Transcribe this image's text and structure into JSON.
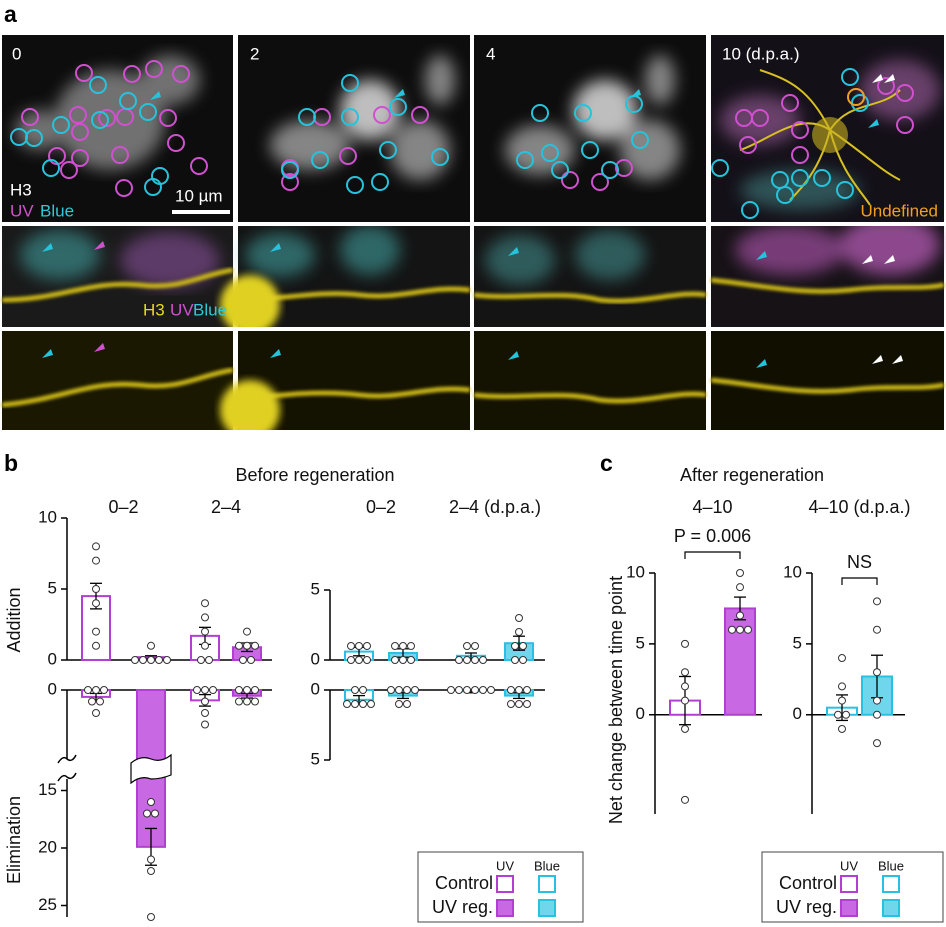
{
  "panel_labels": [
    "a",
    "b",
    "c"
  ],
  "image_panel": {
    "timepoints": [
      "0",
      "2",
      "4",
      "10 (d.p.a.)"
    ],
    "channel_labels": [
      "H3",
      "UV",
      "Blue"
    ],
    "scale_bar": "10 µm",
    "undefined_label": "Undefined",
    "row2_labels": [
      "H3",
      "UV",
      "Blue"
    ]
  },
  "panel_b_title": "Before regeneration",
  "panel_c_title": "After regeneration",
  "chart_data": [
    {
      "type": "bar",
      "ylabel": "Addition",
      "categories": [
        "0–2",
        "2–4"
      ],
      "ylim": [
        0,
        10
      ],
      "yticks": [
        0,
        5,
        10
      ],
      "series": [
        {
          "color": "#b23fd2",
          "fill": "#ffffff",
          "values": [
            4.5,
            1.7
          ],
          "errors": [
            0.9,
            0.6
          ],
          "points": [
            [
              8,
              7,
              5,
              4,
              2,
              1
            ],
            [
              4,
              3,
              2,
              1,
              0,
              0
            ]
          ]
        },
        {
          "color": "#b23fd2",
          "fill": "#c868e2",
          "values": [
            0.2,
            0.9
          ],
          "errors": [
            0.1,
            0.3
          ],
          "points": [
            [
              1,
              0,
              0,
              0,
              0,
              0
            ],
            [
              2,
              1,
              1,
              1,
              0,
              0
            ]
          ]
        }
      ]
    },
    {
      "type": "bar",
      "ylabel": "Elimination",
      "direction": "down",
      "categories": [
        null,
        null
      ],
      "ylim": [
        0,
        26
      ],
      "yticks": [
        0,
        15,
        20,
        25
      ],
      "axis_break": [
        6,
        14
      ],
      "series": [
        {
          "color": "#b23fd2",
          "fill": "#ffffff",
          "values": [
            0.6,
            0.9
          ],
          "errors": [
            0.3,
            0.5
          ],
          "points": [
            [
              0,
              0,
              0,
              1,
              1,
              2
            ],
            [
              0,
              0,
              0,
              1,
              2,
              3
            ]
          ]
        },
        {
          "color": "#b23fd2",
          "fill": "#c868e2",
          "values": [
            19.9,
            0.5
          ],
          "errors": [
            1.6,
            0.2
          ],
          "points": [
            [
              16,
              17,
              17,
              21,
              22,
              26
            ],
            [
              0,
              0,
              0,
              1,
              1,
              1
            ]
          ]
        }
      ]
    },
    {
      "type": "bar",
      "categories": [
        "0–2",
        "2–4 (d.p.a.)"
      ],
      "ylim": [
        0,
        5
      ],
      "yticks": [
        0,
        5
      ],
      "series": [
        {
          "color": "#29c1e2",
          "fill": "#ffffff",
          "values": [
            0.6,
            0.3
          ],
          "errors": [
            0.3,
            0.2
          ],
          "points": [
            [
              1,
              1,
              1,
              0,
              0,
              0
            ],
            [
              1,
              1,
              0,
              0,
              0,
              0
            ]
          ]
        },
        {
          "color": "#29c1e2",
          "fill": "#6fd6ec",
          "values": [
            0.5,
            1.2
          ],
          "errors": [
            0.3,
            0.5
          ],
          "points": [
            [
              1,
              1,
              1,
              0,
              0,
              0
            ],
            [
              3,
              2,
              1,
              1,
              0,
              0
            ]
          ]
        }
      ]
    },
    {
      "type": "bar",
      "direction": "down",
      "categories": [
        null,
        null
      ],
      "ylim": [
        0,
        5
      ],
      "yticks": [
        0,
        5
      ],
      "series": [
        {
          "color": "#29c1e2",
          "fill": "#ffffff",
          "values": [
            0.7,
            0.1
          ],
          "errors": [
            0.3,
            0.1
          ],
          "points": [
            [
              1,
              1,
              1,
              1,
              0,
              0
            ],
            [
              0,
              0,
              0,
              0,
              0,
              0
            ]
          ]
        },
        {
          "color": "#29c1e2",
          "fill": "#6fd6ec",
          "values": [
            0.4,
            0.4
          ],
          "errors": [
            0.2,
            0.2
          ],
          "points": [
            [
              1,
              1,
              0,
              0,
              0,
              0
            ],
            [
              1,
              1,
              1,
              0,
              0,
              0
            ]
          ]
        }
      ]
    },
    {
      "type": "bar",
      "ylabel": "Net change between time point",
      "categories": [
        "4–10"
      ],
      "ylim": [
        -7,
        10
      ],
      "yticks": [
        0,
        5,
        10
      ],
      "annotation": "P = 0.006",
      "series": [
        {
          "color": "#b23fd2",
          "fill": "#ffffff",
          "values": [
            1.0
          ],
          "errors": [
            1.7
          ],
          "points": [
            [
              5,
              3,
              2,
              1,
              -1,
              -6
            ]
          ]
        },
        {
          "color": "#b23fd2",
          "fill": "#c868e2",
          "values": [
            7.5
          ],
          "errors": [
            0.8
          ],
          "points": [
            [
              10,
              9,
              7,
              6,
              6,
              6
            ]
          ]
        }
      ]
    },
    {
      "type": "bar",
      "categories": [
        "4–10 (d.p.a.)"
      ],
      "ylim": [
        -7,
        10
      ],
      "yticks": [
        0,
        5,
        10
      ],
      "annotation": "NS",
      "series": [
        {
          "color": "#29c1e2",
          "fill": "#ffffff",
          "values": [
            0.5
          ],
          "errors": [
            0.9
          ],
          "points": [
            [
              4,
              2,
              1,
              0,
              0,
              -1
            ]
          ]
        },
        {
          "color": "#29c1e2",
          "fill": "#6fd6ec",
          "values": [
            2.7
          ],
          "errors": [
            1.5
          ],
          "points": [
            [
              8,
              6,
              3,
              1,
              0,
              -2
            ]
          ]
        }
      ]
    }
  ],
  "legends": [
    {
      "columns": [
        "UV",
        "Blue"
      ],
      "rows": [
        "Control",
        "UV reg."
      ]
    },
    {
      "columns": [
        "UV",
        "Blue"
      ],
      "rows": [
        "Control",
        "UV reg."
      ]
    }
  ]
}
